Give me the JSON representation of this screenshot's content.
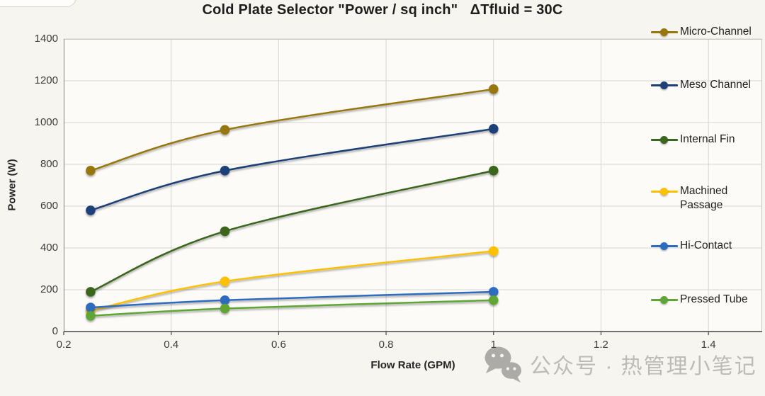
{
  "chart_data": {
    "type": "line",
    "title": "Cold Plate Selector  \"Power / sq inch\"   ΔTfluid = 30C",
    "xlabel": "Flow Rate (GPM)",
    "ylabel": "Power (W)",
    "x": [
      0.25,
      0.5,
      1.0
    ],
    "xlim": [
      0.2,
      1.5
    ],
    "ylim": [
      0,
      1400
    ],
    "x_ticks": [
      0.2,
      0.4,
      0.6,
      0.8,
      1,
      1.2,
      1.4
    ],
    "y_ticks": [
      0,
      200,
      400,
      600,
      800,
      1000,
      1200,
      1400
    ],
    "grid": true,
    "grid_color": "#d7d4cf",
    "background": "#f7f5f0",
    "plot_background": "#fcfbf8",
    "legend_position": "right-overlay",
    "series": [
      {
        "name": "Micro-Channel",
        "color": "#97760B",
        "values": [
          770,
          965,
          1160
        ]
      },
      {
        "name": "Meso Channel",
        "color": "#1F4077",
        "values": [
          580,
          770,
          970
        ]
      },
      {
        "name": "Internal Fin",
        "color": "#3A661F",
        "values": [
          190,
          480,
          770
        ]
      },
      {
        "name": "Machined Passage",
        "color": "#FFC000",
        "values": [
          100,
          240,
          385
        ]
      },
      {
        "name": "Hi-Contact",
        "color": "#2D6CC0",
        "values": [
          115,
          150,
          190
        ]
      },
      {
        "name": "Pressed Tube",
        "color": "#5FA636",
        "values": [
          75,
          110,
          150
        ]
      }
    ]
  },
  "watermark": {
    "text": "公众号 · 热管理小笔记",
    "icon": "wechat-icon",
    "color": "#b7b5b0"
  }
}
